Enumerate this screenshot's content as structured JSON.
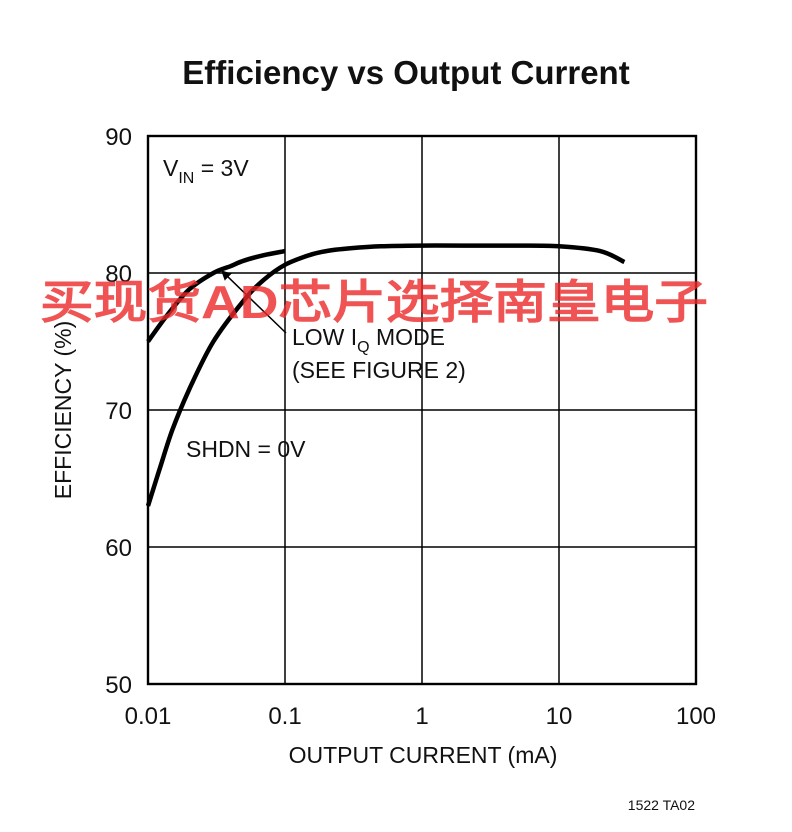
{
  "chart_data": {
    "type": "line",
    "title": "Efficiency vs Output Current",
    "xlabel": "OUTPUT CURRENT (mA)",
    "ylabel": "EFFICIENCY (%)",
    "x_scale": "log",
    "xlim": [
      0.01,
      100
    ],
    "ylim": [
      50,
      90
    ],
    "x_ticks": [
      0.01,
      0.1,
      1,
      10,
      100
    ],
    "x_tick_labels": [
      "0.01",
      "0.1",
      "1",
      "10",
      "100"
    ],
    "y_ticks": [
      50,
      60,
      70,
      80,
      90
    ],
    "y_tick_labels": [
      "50",
      "60",
      "70",
      "80",
      "90"
    ],
    "grid": true,
    "line_color": "#000000",
    "series": [
      {
        "x": [
          0.01,
          0.014,
          0.02,
          0.03,
          0.04,
          0.05,
          0.07,
          0.1
        ],
        "y": [
          75.0,
          77.0,
          78.8,
          80.0,
          80.5,
          80.9,
          81.3,
          81.6
        ]
      },
      {
        "x": [
          0.01,
          0.012,
          0.015,
          0.02,
          0.03,
          0.05,
          0.07,
          0.1,
          0.15,
          0.2,
          0.3,
          0.5,
          1,
          2,
          5,
          10,
          20,
          30
        ],
        "y": [
          63.0,
          65.5,
          68.5,
          71.5,
          75.0,
          78.0,
          79.5,
          80.6,
          81.3,
          81.6,
          81.8,
          81.95,
          82.0,
          82.0,
          82.0,
          81.95,
          81.6,
          80.8
        ]
      }
    ],
    "annotations": {
      "vin_main": "V",
      "vin_sub": "IN",
      "vin_rest": " = 3V",
      "lowiq_line1_a": "LOW I",
      "lowiq_line1_sub": "Q",
      "lowiq_line1_b": " MODE",
      "lowiq_line2": "(SEE FIGURE 2)",
      "shdn": "SHDN = 0V",
      "arrow_target": {
        "x": 0.035,
        "y": 80.1
      }
    },
    "figure_code": "1522 TA02"
  },
  "watermark": "买现货AD芯片选择南皇电子"
}
